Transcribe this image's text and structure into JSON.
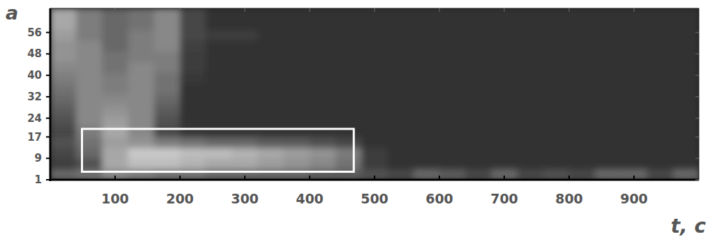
{
  "chart_data": {
    "type": "heatmap",
    "x_label": "t, c",
    "y_label": "a",
    "xlim": [
      0,
      1000
    ],
    "ylim": [
      1,
      65
    ],
    "xticks": [
      100,
      200,
      300,
      400,
      500,
      600,
      700,
      800,
      900
    ],
    "yticks": [
      1,
      9,
      17,
      24,
      32,
      40,
      48,
      56
    ],
    "x_edges": [
      0,
      40,
      80,
      120,
      160,
      200,
      240,
      280,
      320,
      360,
      400,
      440,
      480,
      520,
      560,
      600,
      640,
      680,
      720,
      760,
      800,
      840,
      880,
      920,
      960,
      1000
    ],
    "y_edges": [
      1,
      5,
      9,
      13,
      17,
      21,
      25,
      29,
      33,
      37,
      41,
      45,
      49,
      53,
      57,
      61,
      65
    ],
    "zlim": [
      0,
      1
    ],
    "color": "#ffffff",
    "cells": [
      [
        0.3,
        0.35,
        0.45,
        0.4,
        0.35,
        0.35,
        0.3,
        0.3,
        0.3,
        0.3,
        0.25,
        0.25,
        0.2,
        0.15,
        0.3,
        0.25,
        0.15,
        0.3,
        0.15,
        0.2,
        0.15,
        0.3,
        0.3,
        0.15,
        0.3
      ],
      [
        0.1,
        0.2,
        0.6,
        0.7,
        0.7,
        0.65,
        0.6,
        0.6,
        0.55,
        0.5,
        0.45,
        0.35,
        0.1,
        0.05,
        0.05,
        0.05,
        0.05,
        0.05,
        0.05,
        0.05,
        0.05,
        0.05,
        0.05,
        0.05,
        0.05
      ],
      [
        0.15,
        0.3,
        0.6,
        0.75,
        0.75,
        0.7,
        0.7,
        0.65,
        0.6,
        0.55,
        0.5,
        0.4,
        0.1,
        0.05,
        0.05,
        0.05,
        0.05,
        0.05,
        0.05,
        0.05,
        0.05,
        0.05,
        0.05,
        0.05,
        0.05
      ],
      [
        0.2,
        0.35,
        0.55,
        0.5,
        0.4,
        0.35,
        0.3,
        0.3,
        0.25,
        0.25,
        0.2,
        0.15,
        0.05,
        0.05,
        0.05,
        0.05,
        0.05,
        0.05,
        0.05,
        0.05,
        0.05,
        0.05,
        0.05,
        0.05,
        0.05
      ],
      [
        0.15,
        0.4,
        0.6,
        0.45,
        0.15,
        0.05,
        0.05,
        0.05,
        0.05,
        0.05,
        0.05,
        0.05,
        0.05,
        0.05,
        0.05,
        0.05,
        0.05,
        0.05,
        0.05,
        0.05,
        0.05,
        0.05,
        0.05,
        0.05,
        0.05
      ],
      [
        0.2,
        0.45,
        0.55,
        0.45,
        0.2,
        0.05,
        0.05,
        0.05,
        0.05,
        0.05,
        0.05,
        0.05,
        0.05,
        0.05,
        0.05,
        0.05,
        0.05,
        0.05,
        0.05,
        0.05,
        0.05,
        0.05,
        0.05,
        0.05,
        0.05
      ],
      [
        0.25,
        0.45,
        0.5,
        0.45,
        0.25,
        0.05,
        0.05,
        0.05,
        0.05,
        0.05,
        0.05,
        0.05,
        0.05,
        0.05,
        0.05,
        0.05,
        0.05,
        0.05,
        0.05,
        0.05,
        0.05,
        0.05,
        0.05,
        0.05,
        0.05
      ],
      [
        0.3,
        0.45,
        0.45,
        0.45,
        0.3,
        0.05,
        0.05,
        0.05,
        0.05,
        0.05,
        0.05,
        0.05,
        0.05,
        0.05,
        0.05,
        0.05,
        0.05,
        0.05,
        0.05,
        0.05,
        0.05,
        0.05,
        0.05,
        0.05,
        0.05
      ],
      [
        0.35,
        0.45,
        0.4,
        0.45,
        0.35,
        0.05,
        0.05,
        0.05,
        0.05,
        0.05,
        0.05,
        0.05,
        0.05,
        0.05,
        0.05,
        0.05,
        0.05,
        0.05,
        0.05,
        0.05,
        0.05,
        0.05,
        0.05,
        0.05,
        0.05
      ],
      [
        0.4,
        0.45,
        0.4,
        0.45,
        0.35,
        0.08,
        0.05,
        0.05,
        0.05,
        0.05,
        0.05,
        0.05,
        0.05,
        0.05,
        0.05,
        0.05,
        0.05,
        0.05,
        0.05,
        0.05,
        0.05,
        0.05,
        0.05,
        0.05,
        0.05
      ],
      [
        0.45,
        0.45,
        0.35,
        0.45,
        0.4,
        0.1,
        0.05,
        0.05,
        0.05,
        0.05,
        0.05,
        0.05,
        0.05,
        0.05,
        0.05,
        0.05,
        0.05,
        0.05,
        0.05,
        0.05,
        0.05,
        0.05,
        0.05,
        0.05,
        0.05
      ],
      [
        0.5,
        0.45,
        0.35,
        0.4,
        0.4,
        0.1,
        0.05,
        0.05,
        0.05,
        0.05,
        0.05,
        0.05,
        0.05,
        0.05,
        0.05,
        0.05,
        0.05,
        0.05,
        0.05,
        0.05,
        0.05,
        0.05,
        0.05,
        0.05,
        0.05
      ],
      [
        0.5,
        0.45,
        0.3,
        0.4,
        0.45,
        0.12,
        0.05,
        0.05,
        0.05,
        0.05,
        0.05,
        0.05,
        0.05,
        0.05,
        0.05,
        0.05,
        0.05,
        0.05,
        0.05,
        0.05,
        0.05,
        0.05,
        0.05,
        0.05,
        0.05
      ],
      [
        0.55,
        0.4,
        0.3,
        0.4,
        0.45,
        0.15,
        0.1,
        0.1,
        0.05,
        0.05,
        0.05,
        0.05,
        0.05,
        0.05,
        0.05,
        0.05,
        0.05,
        0.05,
        0.05,
        0.05,
        0.05,
        0.05,
        0.05,
        0.05,
        0.05
      ],
      [
        0.6,
        0.4,
        0.3,
        0.35,
        0.45,
        0.15,
        0.05,
        0.05,
        0.05,
        0.05,
        0.05,
        0.05,
        0.05,
        0.05,
        0.05,
        0.05,
        0.05,
        0.05,
        0.05,
        0.05,
        0.05,
        0.05,
        0.05,
        0.05,
        0.05
      ],
      [
        0.6,
        0.4,
        0.3,
        0.35,
        0.45,
        0.15,
        0.05,
        0.05,
        0.05,
        0.05,
        0.05,
        0.05,
        0.05,
        0.05,
        0.05,
        0.05,
        0.05,
        0.05,
        0.05,
        0.05,
        0.05,
        0.05,
        0.05,
        0.05,
        0.05
      ]
    ],
    "annotations": [
      {
        "x": [
          49,
          468
        ],
        "y": [
          4,
          20
        ],
        "color": "#ffffff"
      }
    ]
  }
}
